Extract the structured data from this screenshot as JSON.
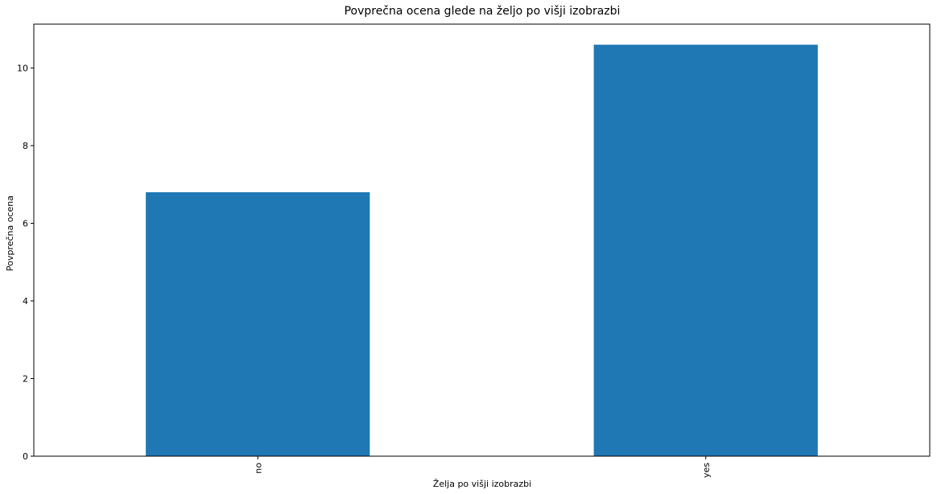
{
  "chart_data": {
    "type": "bar",
    "title": "Povprečna ocena glede na željo po višji izobrazbi",
    "xlabel": "Želja po višji izobrazbi",
    "ylabel": "Povprečna ocena",
    "categories": [
      "no",
      "yes"
    ],
    "values": [
      6.8,
      10.6
    ],
    "ylim": [
      0,
      11.13
    ],
    "yticks": [
      0,
      2,
      4,
      6,
      8,
      10
    ],
    "grid": false,
    "colors": {
      "bar": "#1f77b4",
      "axes": "#000000",
      "background": "#ffffff"
    }
  }
}
